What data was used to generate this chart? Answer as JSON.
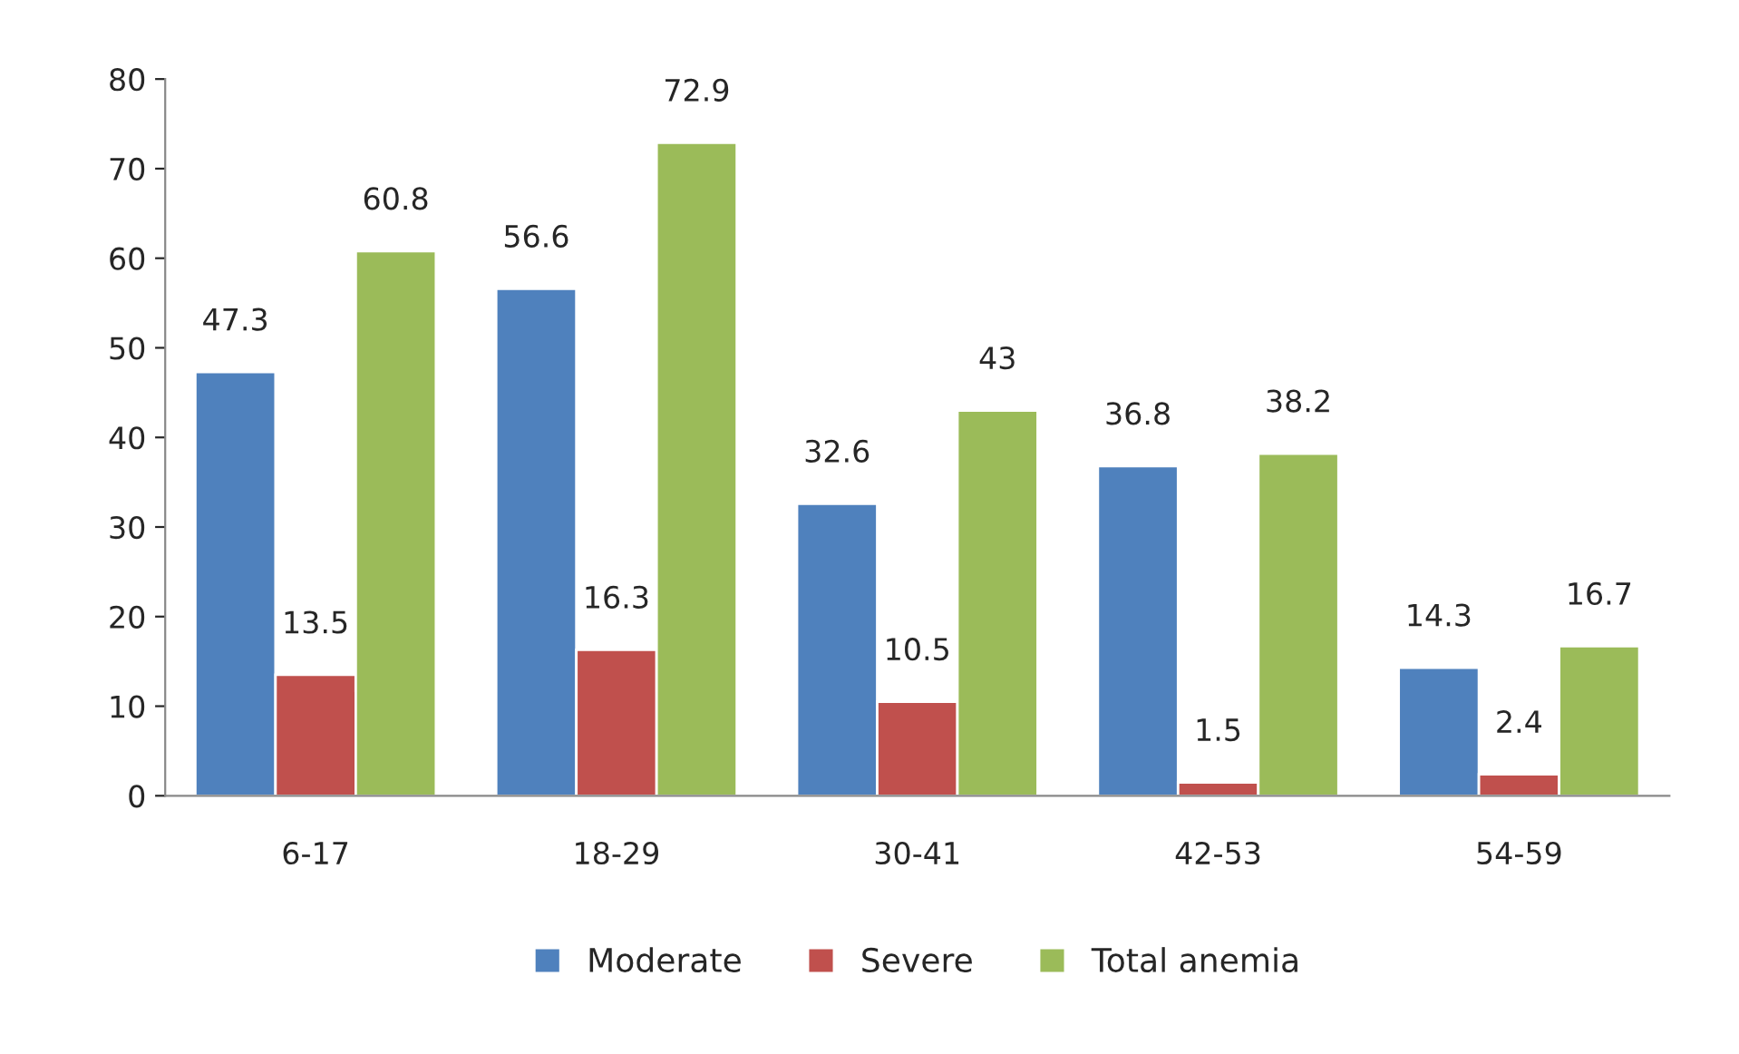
{
  "chart_data": {
    "type": "bar",
    "categories": [
      "6-17",
      "18-29",
      "30-41",
      "42-53",
      "54-59"
    ],
    "series": [
      {
        "name": "Moderate",
        "color": "#4f81bd",
        "values": [
          47.3,
          56.6,
          32.6,
          36.8,
          14.3
        ]
      },
      {
        "name": "Severe",
        "color": "#c0504d",
        "values": [
          13.5,
          16.3,
          10.5,
          1.5,
          2.4
        ]
      },
      {
        "name": "Total anemia",
        "color": "#9bbb59",
        "values": [
          60.8,
          72.9,
          43,
          38.2,
          16.7
        ]
      }
    ],
    "ylim": [
      0,
      80
    ],
    "yticks": [
      0,
      10,
      20,
      30,
      40,
      50,
      60,
      70,
      80
    ],
    "data_labels": true,
    "legend": "bottom",
    "grid": false
  }
}
